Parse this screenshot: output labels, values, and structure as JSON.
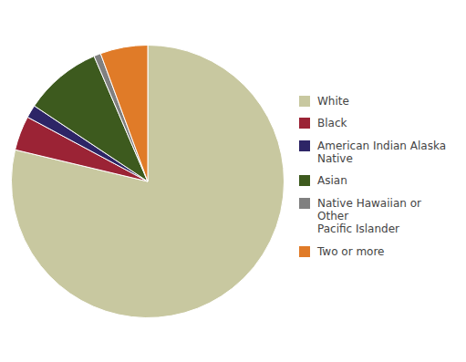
{
  "chart_data": {
    "type": "pie",
    "categories": [
      "White",
      "Black",
      "American Indian Alaska\nNative",
      "Asian",
      "Native Hawaiian or Other\nPacific Islander",
      "Two or more"
    ],
    "values": [
      77.0,
      4.0,
      1.5,
      9.0,
      0.8,
      5.5
    ],
    "colors": [
      "#c8c8a0",
      "#9b2335",
      "#2d2566",
      "#3d5a1e",
      "#808080",
      "#e07b28"
    ],
    "legend": "right"
  }
}
